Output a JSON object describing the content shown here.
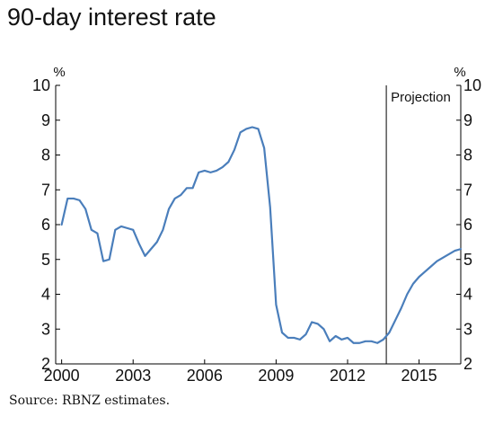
{
  "chart_data": {
    "type": "line",
    "title": "90-day interest rate",
    "source": "Source: RBNZ estimates.",
    "left_unit": "%",
    "right_unit": "%",
    "projection_label": "Projection",
    "projection_start_x": 2013.625,
    "xlim": [
      1999.75,
      2016.75
    ],
    "ylim": [
      2,
      10
    ],
    "x_ticks": [
      2000,
      2003,
      2006,
      2009,
      2012,
      2015
    ],
    "x_tick_labels": [
      "2000",
      "2003",
      "2006",
      "2009",
      "2012",
      "2015"
    ],
    "y_ticks": [
      2,
      3,
      4,
      5,
      6,
      7,
      8,
      9,
      10
    ],
    "y_tick_labels": [
      "2",
      "3",
      "4",
      "5",
      "6",
      "7",
      "8",
      "9",
      "10"
    ],
    "grid": false,
    "line_color": "#4a7ebb",
    "series": [
      {
        "values": [
          [
            2000.0,
            6.0
          ],
          [
            2000.25,
            6.75
          ],
          [
            2000.5,
            6.75
          ],
          [
            2000.75,
            6.7
          ],
          [
            2001.0,
            6.45
          ],
          [
            2001.25,
            5.85
          ],
          [
            2001.5,
            5.75
          ],
          [
            2001.75,
            4.95
          ],
          [
            2002.0,
            5.0
          ],
          [
            2002.25,
            5.85
          ],
          [
            2002.5,
            5.95
          ],
          [
            2002.75,
            5.9
          ],
          [
            2003.0,
            5.85
          ],
          [
            2003.25,
            5.45
          ],
          [
            2003.5,
            5.1
          ],
          [
            2003.75,
            5.3
          ],
          [
            2004.0,
            5.5
          ],
          [
            2004.25,
            5.85
          ],
          [
            2004.5,
            6.45
          ],
          [
            2004.75,
            6.75
          ],
          [
            2005.0,
            6.85
          ],
          [
            2005.25,
            7.05
          ],
          [
            2005.5,
            7.05
          ],
          [
            2005.75,
            7.5
          ],
          [
            2006.0,
            7.55
          ],
          [
            2006.25,
            7.5
          ],
          [
            2006.5,
            7.55
          ],
          [
            2006.75,
            7.65
          ],
          [
            2007.0,
            7.8
          ],
          [
            2007.25,
            8.15
          ],
          [
            2007.5,
            8.65
          ],
          [
            2007.75,
            8.75
          ],
          [
            2008.0,
            8.8
          ],
          [
            2008.25,
            8.75
          ],
          [
            2008.5,
            8.2
          ],
          [
            2008.75,
            6.5
          ],
          [
            2009.0,
            3.7
          ],
          [
            2009.25,
            2.9
          ],
          [
            2009.5,
            2.75
          ],
          [
            2009.75,
            2.75
          ],
          [
            2010.0,
            2.7
          ],
          [
            2010.25,
            2.85
          ],
          [
            2010.5,
            3.2
          ],
          [
            2010.75,
            3.15
          ],
          [
            2011.0,
            3.0
          ],
          [
            2011.25,
            2.65
          ],
          [
            2011.5,
            2.8
          ],
          [
            2011.75,
            2.7
          ],
          [
            2012.0,
            2.75
          ],
          [
            2012.25,
            2.6
          ],
          [
            2012.5,
            2.6
          ],
          [
            2012.75,
            2.65
          ],
          [
            2013.0,
            2.65
          ],
          [
            2013.25,
            2.6
          ],
          [
            2013.5,
            2.7
          ],
          [
            2013.75,
            2.9
          ],
          [
            2014.0,
            3.25
          ],
          [
            2014.25,
            3.6
          ],
          [
            2014.5,
            4.0
          ],
          [
            2014.75,
            4.3
          ],
          [
            2015.0,
            4.5
          ],
          [
            2015.25,
            4.65
          ],
          [
            2015.5,
            4.8
          ],
          [
            2015.75,
            4.95
          ],
          [
            2016.0,
            5.05
          ],
          [
            2016.25,
            5.15
          ],
          [
            2016.5,
            5.25
          ],
          [
            2016.75,
            5.3
          ]
        ]
      }
    ]
  }
}
